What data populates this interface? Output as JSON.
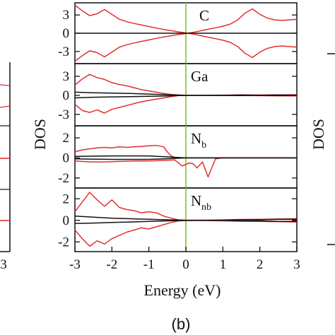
{
  "left_panel": {
    "xtick": "3"
  },
  "right_panel": {
    "ylabel": "DOS"
  },
  "chart_data": {
    "type": "line",
    "xlabel": "Energy (eV)",
    "panel_label": "(b)",
    "xlim": [
      -3,
      3
    ],
    "x_ticks": [
      "-3",
      "-2",
      "-1",
      "0",
      "1",
      "2",
      "3"
    ],
    "fermi_line": 0,
    "fermi_color": "#88cc44",
    "colors": {
      "spin_up": "#e03030",
      "total": "#111111"
    },
    "ylabel": "DOS",
    "subplots": [
      {
        "element": "C",
        "element_sub": "",
        "ylim": [
          -5,
          5
        ],
        "yticks": [
          "3",
          "0",
          "-3"
        ],
        "series": [
          {
            "color": "#e03030",
            "x": [
              -3,
              -2.8,
              -2.6,
              -2.4,
              -2.2,
              -2.0,
              -1.8,
              -1.6,
              -1.4,
              -1.2,
              -1.0,
              -0.8,
              -0.6,
              -0.4,
              -0.2,
              0,
              0.2,
              0.4,
              0.6,
              0.8,
              1.0,
              1.2,
              1.4,
              1.6,
              1.8,
              2.0,
              2.2,
              2.4,
              2.6,
              2.8,
              3.0
            ],
            "y": [
              4.6,
              3.7,
              2.9,
              3.2,
              3.9,
              3.1,
              2.3,
              1.9,
              1.6,
              1.35,
              1.1,
              0.85,
              0.62,
              0.42,
              0.22,
              0.05,
              -0.15,
              -0.4,
              -0.65,
              -0.9,
              -1.15,
              -1.5,
              -2.2,
              -3.3,
              -4.0,
              -3.1,
              -2.5,
              -2.2,
              -2.1,
              -2.2,
              -2.3
            ]
          },
          {
            "color": "#e03030",
            "x": [
              -3,
              -2.8,
              -2.6,
              -2.4,
              -2.2,
              -2.0,
              -1.8,
              -1.6,
              -1.4,
              -1.2,
              -1.0,
              -0.8,
              -0.6,
              -0.4,
              -0.2,
              0,
              0.2,
              0.4,
              0.6,
              0.8,
              1.0,
              1.2,
              1.4,
              1.6,
              1.8,
              2.0,
              2.2,
              2.4,
              2.6,
              2.8,
              3.0
            ],
            "y": [
              -4.6,
              -3.7,
              -2.9,
              -3.2,
              -3.9,
              -3.1,
              -2.3,
              -1.9,
              -1.6,
              -1.35,
              -1.1,
              -0.85,
              -0.62,
              -0.42,
              -0.22,
              -0.05,
              0.15,
              0.4,
              0.65,
              0.9,
              1.15,
              1.5,
              2.2,
              3.3,
              4.0,
              3.1,
              2.5,
              2.2,
              2.1,
              2.2,
              2.3
            ]
          },
          {
            "color": "#111111",
            "x": [
              -3,
              3
            ],
            "y": [
              0,
              0
            ]
          }
        ]
      },
      {
        "element": "Ga",
        "element_sub": "",
        "ylim": [
          -4.8,
          5
        ],
        "yticks": [
          "3",
          "0",
          "-3"
        ],
        "series": [
          {
            "color": "#e03030",
            "x": [
              -3,
              -2.8,
              -2.6,
              -2.4,
              -2.2,
              -2.0,
              -1.8,
              -1.6,
              -1.4,
              -1.2,
              -1.0,
              -0.8,
              -0.6,
              -0.4,
              -0.2,
              0,
              0.5,
              1.0,
              1.5,
              2.0,
              2.5,
              3.0
            ],
            "y": [
              1.6,
              2.6,
              3.3,
              2.8,
              2.5,
              2.0,
              1.7,
              1.5,
              1.2,
              0.9,
              0.7,
              0.5,
              0.3,
              0.15,
              0.05,
              0.02,
              0.02,
              0.03,
              0.05,
              0.06,
              0.08,
              0.1
            ]
          },
          {
            "color": "#e03030",
            "x": [
              -3,
              -2.8,
              -2.6,
              -2.4,
              -2.2,
              -2.0,
              -1.8,
              -1.6,
              -1.4,
              -1.2,
              -1.0,
              -0.8,
              -0.6,
              -0.4,
              -0.2,
              0,
              0.5,
              1.0,
              1.5,
              2.0,
              2.5,
              3.0
            ],
            "y": [
              -1.4,
              -2.4,
              -2.7,
              -2.3,
              -2.8,
              -2.2,
              -1.9,
              -1.6,
              -1.3,
              -1.0,
              -0.8,
              -0.6,
              -0.4,
              -0.2,
              -0.05,
              -0.02,
              -0.02,
              -0.03,
              -0.05,
              -0.06,
              -0.08,
              -0.1
            ]
          },
          {
            "color": "#111111",
            "x": [
              -3,
              -2.5,
              -2,
              -1.5,
              -1,
              -0.5,
              0,
              0.5,
              1,
              1.5,
              2,
              2.5,
              3
            ],
            "y": [
              0.5,
              0.4,
              0.35,
              0.3,
              0.2,
              0.1,
              0.0,
              0.0,
              0.0,
              -0.05,
              0.0,
              -0.05,
              0.0
            ]
          },
          {
            "color": "#111111",
            "x": [
              -3,
              -2.5,
              -2,
              -1.5,
              -1,
              -0.5,
              0,
              0.5,
              1,
              1.5,
              2,
              2.5,
              3
            ],
            "y": [
              -0.4,
              -0.3,
              -0.25,
              -0.2,
              -0.15,
              -0.1,
              0.0,
              0.0,
              0.0,
              0.05,
              0.0,
              0.05,
              0.0
            ]
          }
        ]
      },
      {
        "element": "N",
        "element_sub": "b",
        "ylim": [
          -3.0,
          3.2
        ],
        "yticks": [
          "2",
          "0",
          "-2"
        ],
        "series": [
          {
            "color": "#e03030",
            "x": [
              -3,
              -2.8,
              -2.6,
              -2.4,
              -2.2,
              -2.0,
              -1.8,
              -1.6,
              -1.4,
              -1.2,
              -1.0,
              -0.8,
              -0.6,
              -0.5,
              -0.4,
              -0.3,
              -0.2,
              0,
              0.2,
              0.4,
              0.6,
              0.8,
              1.0,
              2.0,
              3.0
            ],
            "y": [
              0.6,
              0.8,
              0.9,
              1.0,
              1.05,
              1.0,
              1.1,
              1.05,
              1.1,
              1.15,
              1.2,
              1.25,
              1.1,
              0.6,
              0.2,
              0.05,
              0.02,
              0.0,
              0.0,
              0.0,
              0.0,
              0.0,
              0.0,
              0.0,
              0.0
            ]
          },
          {
            "color": "#e03030",
            "x": [
              -3,
              -2.6,
              -2.2,
              -1.8,
              -1.4,
              -1.0,
              -0.6,
              -0.3,
              -0.1,
              0.1,
              0.2,
              0.3,
              0.45,
              0.6,
              0.7,
              0.8,
              1.0,
              2.0,
              3.0
            ],
            "y": [
              -0.3,
              -0.4,
              -0.4,
              -0.35,
              -0.3,
              -0.3,
              -0.25,
              -0.2,
              -0.8,
              -0.5,
              -0.6,
              -1.0,
              -0.4,
              -1.9,
              -1.0,
              -0.1,
              0.0,
              0.0,
              0.0
            ]
          },
          {
            "color": "#111111",
            "x": [
              -3,
              -2,
              -1,
              -0.5,
              0,
              1,
              2,
              3
            ],
            "y": [
              0.15,
              0.2,
              0.2,
              0.1,
              0.0,
              0.0,
              0.0,
              0.0
            ]
          },
          {
            "color": "#111111",
            "x": [
              -3,
              -2,
              -1,
              -0.5,
              0,
              1,
              2,
              3
            ],
            "y": [
              -0.1,
              -0.15,
              -0.15,
              -0.08,
              0.0,
              0.0,
              0.0,
              0.0
            ]
          }
        ]
      },
      {
        "element": "N",
        "element_sub": "nb",
        "ylim": [
          -2.9,
          3.0
        ],
        "yticks": [
          "2",
          "0",
          "-2"
        ],
        "series": [
          {
            "color": "#e03030",
            "x": [
              -3,
              -2.8,
              -2.6,
              -2.4,
              -2.2,
              -2.0,
              -1.8,
              -1.6,
              -1.4,
              -1.2,
              -1.0,
              -0.8,
              -0.6,
              -0.4,
              -0.2,
              0,
              0.5,
              1.0,
              1.5,
              2.0,
              2.5,
              3.0
            ],
            "y": [
              0.8,
              1.7,
              2.6,
              1.9,
              1.3,
              1.9,
              1.2,
              1.0,
              0.9,
              0.7,
              0.8,
              0.7,
              0.4,
              0.2,
              0.05,
              0.02,
              0.02,
              0.05,
              0.08,
              0.1,
              0.12,
              0.15
            ]
          },
          {
            "color": "#e03030",
            "x": [
              -3,
              -2.8,
              -2.6,
              -2.4,
              -2.2,
              -2.0,
              -1.8,
              -1.6,
              -1.4,
              -1.2,
              -1.0,
              -0.8,
              -0.6,
              -0.4,
              -0.2,
              0,
              0.5,
              1.0,
              1.5,
              2.0,
              2.5,
              3.0
            ],
            "y": [
              -0.9,
              -1.7,
              -2.4,
              -1.9,
              -2.2,
              -1.7,
              -1.4,
              -1.1,
              -0.9,
              -0.7,
              -0.8,
              -0.6,
              -0.4,
              -0.2,
              -0.05,
              -0.02,
              -0.02,
              -0.05,
              -0.08,
              -0.1,
              -0.12,
              -0.15
            ]
          },
          {
            "color": "#111111",
            "x": [
              -3,
              -2.5,
              -2,
              -1.5,
              -1,
              -0.5,
              0,
              0.5,
              1,
              1.5,
              2,
              2.5,
              3
            ],
            "y": [
              0.4,
              0.3,
              0.2,
              0.15,
              0.1,
              0.05,
              0.0,
              0.0,
              0.0,
              0.05,
              0.05,
              0.1,
              0.1
            ]
          },
          {
            "color": "#111111",
            "x": [
              -3,
              -2.5,
              -2,
              -1.5,
              -1,
              -0.5,
              0,
              0.5,
              1,
              1.5,
              2,
              2.5,
              3
            ],
            "y": [
              -0.3,
              -0.25,
              -0.2,
              -0.15,
              -0.1,
              -0.05,
              0.0,
              0.0,
              0.0,
              -0.05,
              -0.05,
              -0.1,
              -0.1
            ]
          }
        ]
      }
    ]
  }
}
